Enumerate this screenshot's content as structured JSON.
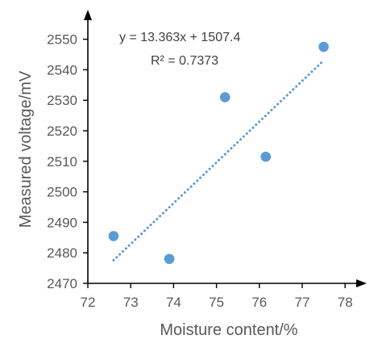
{
  "chart_data": {
    "type": "scatter",
    "xlabel": "Moisture content/%",
    "ylabel": "Measured voltage/mV",
    "xlim": [
      72,
      78
    ],
    "ylim": [
      2470,
      2550
    ],
    "xticks": [
      "72",
      "73",
      "74",
      "75",
      "76",
      "77",
      "78"
    ],
    "yticks": [
      "2470",
      "2480",
      "2490",
      "2500",
      "2510",
      "2520",
      "2530",
      "2540",
      "2550"
    ],
    "series": [
      {
        "points": [
          {
            "x": 72.6,
            "y": 2485.5
          },
          {
            "x": 73.9,
            "y": 2478
          },
          {
            "x": 75.2,
            "y": 2531
          },
          {
            "x": 76.15,
            "y": 2511.5
          },
          {
            "x": 77.5,
            "y": 2547.5
          }
        ],
        "color": "#5b9bd5"
      }
    ],
    "trendline": {
      "type": "linear",
      "slope": 13.363,
      "intercept": 1507.4,
      "x_range": [
        72.6,
        77.5
      ],
      "style": "dotted",
      "color": "#5b9bd5"
    },
    "annotations": {
      "equation": "y = 13.363x + 1507.4",
      "r_squared": "R² = 0.7373"
    },
    "grid": false,
    "legend": "none"
  }
}
